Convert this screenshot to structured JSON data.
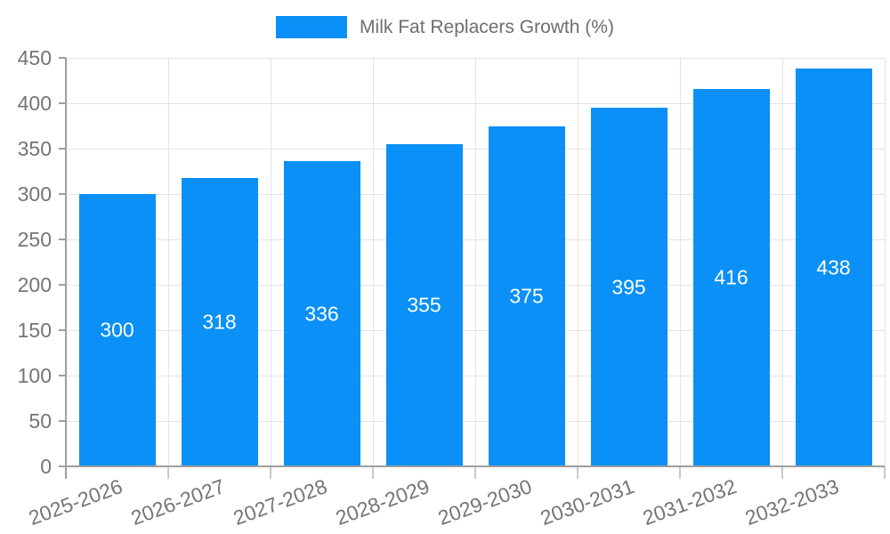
{
  "chart_data": {
    "type": "bar",
    "title": "",
    "legend": {
      "label": "Milk Fat Replacers Growth (%)",
      "position": "top-center"
    },
    "categories": [
      "2025-2026",
      "2026-2027",
      "2027-2028",
      "2028-2029",
      "2029-2030",
      "2030-2031",
      "2031-2032",
      "2032-2033"
    ],
    "series": [
      {
        "name": "Milk Fat Replacers Growth (%)",
        "values": [
          300,
          318,
          336,
          355,
          375,
          395,
          416,
          438
        ]
      }
    ],
    "xlabel": "",
    "ylabel": "",
    "ylim": [
      0,
      450
    ],
    "yticks": [
      0,
      50,
      100,
      150,
      200,
      250,
      300,
      350,
      400,
      450
    ],
    "grid": true,
    "x_label_rotation_deg": -20,
    "value_labels": {
      "visible": true,
      "position": "inside-center",
      "color": "#ffffff"
    }
  },
  "colors": {
    "bar": "#0a90f6",
    "grid": "#e4e4e4",
    "axis": "#9e9e9e",
    "tick_label": "#757575",
    "legend_text": "#6e6e6e",
    "background": "#ffffff"
  }
}
